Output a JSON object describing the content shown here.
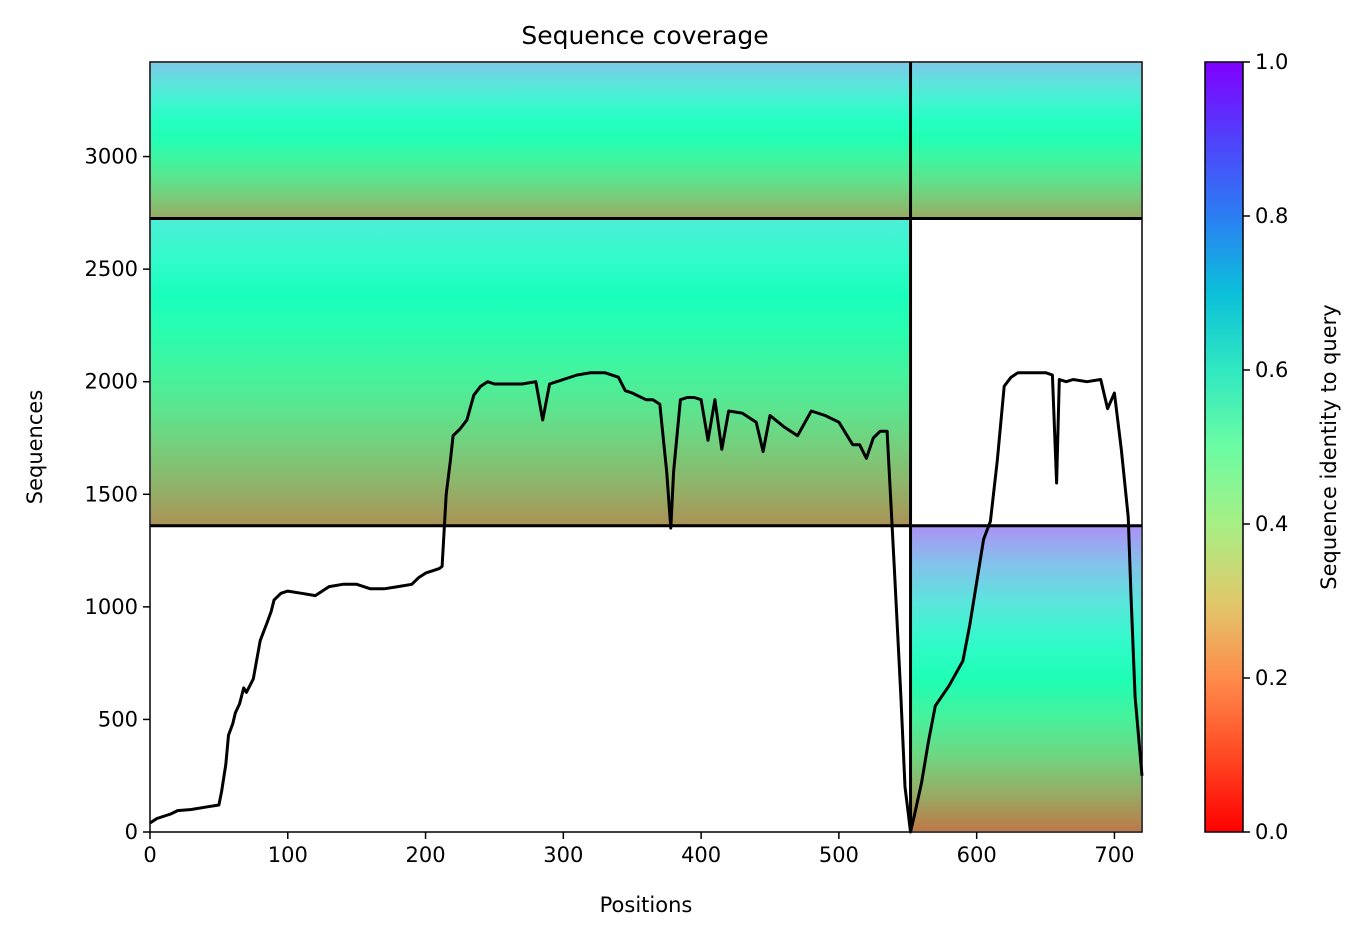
{
  "chart_data": {
    "type": "heatmap",
    "title": "Sequence coverage",
    "xlabel": "Positions",
    "ylabel": "Sequences",
    "xlim": [
      0,
      720
    ],
    "ylim": [
      0,
      3420
    ],
    "x_ticks": [
      0,
      100,
      200,
      300,
      400,
      500,
      600,
      700
    ],
    "y_ticks": [
      0,
      500,
      1000,
      1500,
      2000,
      2500,
      3000
    ],
    "colorbar": {
      "label": "Sequence identity to query",
      "colormap": "rainbow",
      "range": [
        0,
        1
      ],
      "ticks": [
        "0.0",
        "0.2",
        "0.4",
        "0.6",
        "0.8",
        "1.0"
      ],
      "tick_values": [
        0,
        0.2,
        0.4,
        0.6,
        0.8,
        1.0
      ]
    },
    "block_boundaries": {
      "position_split": 552,
      "sequence_splits": [
        1360,
        2725
      ]
    },
    "coverage_blocks": [
      {
        "x": [
          0,
          552
        ],
        "y": [
          2725,
          3420
        ],
        "identity_top": 0.72,
        "identity_bottom": 0.22
      },
      {
        "x": [
          552,
          720
        ],
        "y": [
          2725,
          3420
        ],
        "identity_top": 0.72,
        "identity_bottom": 0.22
      },
      {
        "x": [
          0,
          552
        ],
        "y": [
          1360,
          2725
        ],
        "identity_top": 0.62,
        "identity_bottom": 0.18
      },
      {
        "x": [
          552,
          720
        ],
        "y": [
          0,
          1360
        ],
        "identity_top": 0.82,
        "identity_bottom": 0.14
      }
    ],
    "series": [
      {
        "type": "line",
        "color": "#000000",
        "x": [
          0,
          5,
          15,
          20,
          30,
          40,
          50,
          52,
          55,
          57,
          60,
          62,
          65,
          68,
          70,
          75,
          80,
          85,
          88,
          90,
          95,
          100,
          110,
          120,
          125,
          130,
          140,
          150,
          160,
          170,
          180,
          190,
          195,
          200,
          210,
          212,
          215,
          218,
          220,
          225,
          230,
          235,
          240,
          245,
          250,
          260,
          270,
          280,
          285,
          290,
          300,
          310,
          320,
          330,
          340,
          345,
          350,
          360,
          365,
          370,
          375,
          378,
          380,
          385,
          390,
          395,
          400,
          405,
          410,
          415,
          420,
          430,
          440,
          445,
          450,
          460,
          470,
          480,
          490,
          500,
          510,
          515,
          520,
          525,
          530,
          535,
          540,
          545,
          548,
          550,
          552,
          555,
          560,
          565,
          570,
          580,
          590,
          595,
          600,
          605,
          610,
          615,
          620,
          625,
          630,
          640,
          650,
          655,
          658,
          660,
          665,
          670,
          680,
          690,
          695,
          700,
          705,
          710,
          712,
          715,
          720
        ],
        "y": [
          40,
          60,
          80,
          95,
          100,
          110,
          120,
          180,
          300,
          430,
          480,
          530,
          570,
          640,
          620,
          680,
          850,
          930,
          980,
          1030,
          1060,
          1070,
          1060,
          1050,
          1070,
          1090,
          1100,
          1100,
          1080,
          1080,
          1090,
          1100,
          1130,
          1150,
          1170,
          1180,
          1500,
          1650,
          1760,
          1790,
          1830,
          1940,
          1980,
          2000,
          1990,
          1990,
          1990,
          2000,
          1830,
          1990,
          2010,
          2030,
          2040,
          2040,
          2020,
          1960,
          1950,
          1920,
          1920,
          1900,
          1600,
          1350,
          1600,
          1920,
          1930,
          1930,
          1920,
          1740,
          1920,
          1700,
          1870,
          1860,
          1820,
          1690,
          1850,
          1800,
          1760,
          1870,
          1850,
          1820,
          1720,
          1720,
          1660,
          1750,
          1780,
          1780,
          1200,
          600,
          200,
          100,
          0,
          80,
          220,
          400,
          560,
          650,
          760,
          920,
          1110,
          1300,
          1380,
          1650,
          1980,
          2020,
          2040,
          2040,
          2040,
          2030,
          1550,
          2010,
          2000,
          2010,
          2000,
          2010,
          1880,
          1950,
          1700,
          1400,
          1050,
          600,
          250
        ]
      }
    ]
  }
}
